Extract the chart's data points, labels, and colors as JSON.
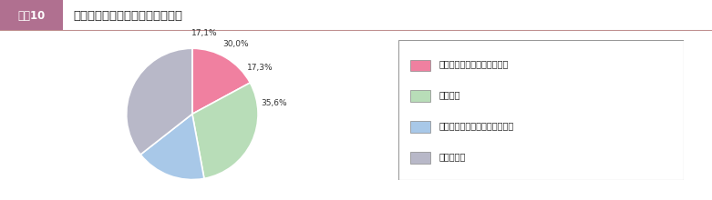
{
  "title_label": "地域防災力の変化についての認識",
  "badge_text": "図表10",
  "slices": [
    17.1,
    30.0,
    17.3,
    35.6
  ],
  "pct_labels": [
    "17,1%",
    "30,0%",
    "17,3%",
    "35,6%"
  ],
  "colors": [
    "#F080A0",
    "#B8DDB8",
    "#A8C8E8",
    "#B8B8C8"
  ],
  "legend_labels": [
    "地域の防災力は高まっている",
    "変化ない",
    "地域の防災力は低くなっている",
    "わからない"
  ],
  "legend_colors": [
    "#F080A0",
    "#B8DDB8",
    "#A8C8E8",
    "#B8B8C8"
  ],
  "bg_color": "#FFFFFF",
  "badge_bg": "#B07090",
  "header_strip_color": "#EDD8E0",
  "header_line_color": "#C09090",
  "start_angle": 90
}
